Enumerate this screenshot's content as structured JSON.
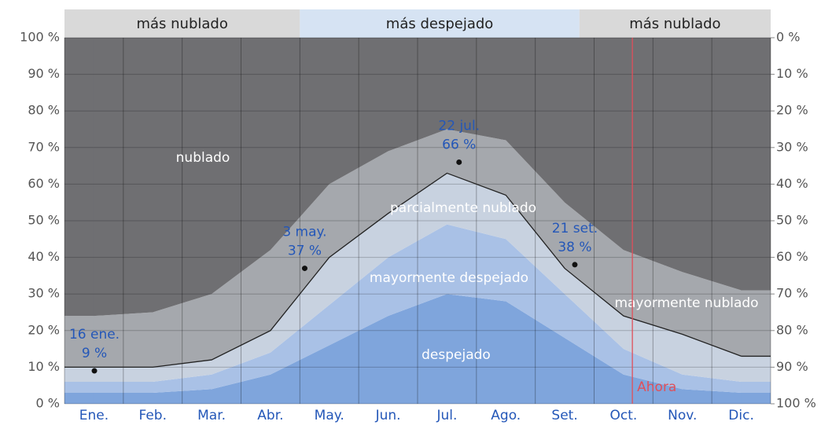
{
  "chart_data": {
    "type": "stacked_area",
    "categories": [
      "Ene.",
      "Feb.",
      "Mar.",
      "Abr.",
      "May.",
      "Jun.",
      "Jul.",
      "Ago.",
      "Set.",
      "Oct.",
      "Nov.",
      "Dic."
    ],
    "series": [
      {
        "name": "despejado",
        "color": "#7fa5dc",
        "values": [
          3,
          3,
          4,
          8,
          16,
          24,
          30,
          28,
          18,
          8,
          4,
          3
        ]
      },
      {
        "name": "mayormente despejado",
        "color": "#a9c1e6",
        "values": [
          3,
          3,
          4,
          6,
          11,
          16,
          19,
          17,
          12,
          7,
          4,
          3
        ]
      },
      {
        "name": "parcialmente nublado",
        "color": "#c8d2e0",
        "values": [
          4,
          4,
          4,
          6,
          13,
          12,
          14,
          12,
          7,
          9,
          11,
          7
        ]
      },
      {
        "name": "mayormente nublado",
        "color": "#a5a8ad",
        "values": [
          14,
          15,
          18,
          22,
          20,
          17,
          12,
          15,
          18,
          18,
          17,
          18
        ]
      },
      {
        "name": "nublado",
        "color": "#6f6f72",
        "values": [
          76,
          75,
          70,
          58,
          40,
          31,
          25,
          28,
          45,
          58,
          64,
          69
        ]
      }
    ],
    "line": {
      "color": "#222222",
      "values": [
        10,
        10,
        12,
        20,
        40,
        52,
        63,
        57,
        37,
        24,
        19,
        13
      ]
    },
    "annotations": [
      {
        "date": "16 ene.",
        "value": 9,
        "value_label": "9 %"
      },
      {
        "date": "3 may.",
        "value": 37,
        "value_label": "37 %"
      },
      {
        "date": "22 jul.",
        "value": 66,
        "value_label": "66 %"
      },
      {
        "date": "21 set.",
        "value": 38,
        "value_label": "38 %"
      }
    ],
    "bands": [
      {
        "label": "más nublado",
        "from": 0,
        "to": 4,
        "color": "#d9d9d9"
      },
      {
        "label": "más despejado",
        "from": 4,
        "to": 8.75,
        "color": "#d6e3f3"
      },
      {
        "label": "más nublado",
        "from": 8.75,
        "to": 12,
        "color": "#d9d9d9"
      }
    ],
    "now": {
      "label": "Ahora",
      "month": 9.65,
      "color": "#e0505a"
    },
    "ylim": [
      0,
      100
    ],
    "yticks": [
      {
        "value": 0,
        "label": "0 %"
      },
      {
        "value": 10,
        "label": "10 %"
      },
      {
        "value": 20,
        "label": "20 %"
      },
      {
        "value": 30,
        "label": "30 %"
      },
      {
        "value": 40,
        "label": "40 %"
      },
      {
        "value": 50,
        "label": "50 %"
      },
      {
        "value": 60,
        "label": "60 %"
      },
      {
        "value": 70,
        "label": "70 %"
      },
      {
        "value": 80,
        "label": "80 %"
      },
      {
        "value": 90,
        "label": "90 %"
      },
      {
        "value": 100,
        "label": "100 %"
      }
    ],
    "y2lim": [
      100,
      0
    ],
    "y2ticks": [
      {
        "value": 0,
        "label": "0 %"
      },
      {
        "value": 10,
        "label": "10 %"
      },
      {
        "value": 20,
        "label": "20 %"
      },
      {
        "value": 30,
        "label": "30 %"
      },
      {
        "value": 40,
        "label": "40 %"
      },
      {
        "value": 50,
        "label": "50 %"
      },
      {
        "value": 60,
        "label": "60 %"
      },
      {
        "value": 70,
        "label": "70 %"
      },
      {
        "value": 80,
        "label": "80 %"
      },
      {
        "value": 90,
        "label": "90 %"
      },
      {
        "value": 100,
        "label": "100 %"
      }
    ],
    "grid": true
  }
}
